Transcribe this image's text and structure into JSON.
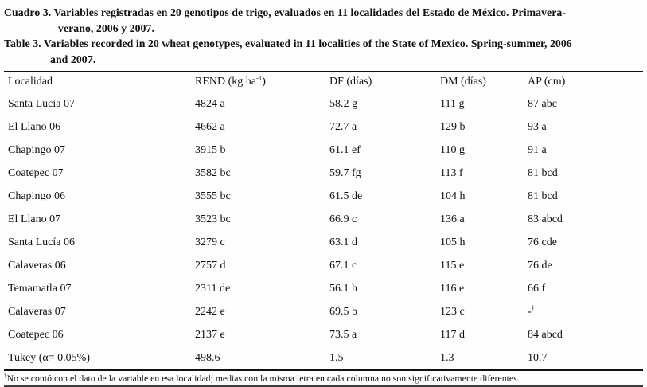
{
  "captions": {
    "es": {
      "line1": "Cuadro 3. Variables registradas en 20 genotipos de trigo, evaluados en 11 localidades del Estado de México. Primavera-",
      "line2": "verano, 2006 y 2007."
    },
    "en": {
      "line1": "Table 3. Variables recorded in 20 wheat genotypes, evaluated in 11 localities of the State of Mexico. Spring-summer, 2006",
      "line2": "and 2007."
    }
  },
  "table": {
    "headers": [
      {
        "pre": "Localidad",
        "sup": "",
        "post": ""
      },
      {
        "pre": "REND (kg ha",
        "sup": "-1",
        "post": ")"
      },
      {
        "pre": "DF (días)",
        "sup": "",
        "post": ""
      },
      {
        "pre": "DM (días)",
        "sup": "",
        "post": ""
      },
      {
        "pre": "AP (cm)",
        "sup": "",
        "post": ""
      }
    ],
    "rows": [
      {
        "cells": [
          "Santa Lucia 07",
          "4824 a",
          "58.2 g",
          "111 g",
          "87 abc"
        ]
      },
      {
        "cells": [
          "El Llano 06",
          "4662 a",
          "72.7 a",
          "129 b",
          "93 a"
        ]
      },
      {
        "cells": [
          "Chapingo 07",
          "3915 b",
          "61.1 ef",
          "110 g",
          "91 a"
        ]
      },
      {
        "cells": [
          "Coatepec 07",
          "3582 bc",
          "59.7 fg",
          "113 f",
          "81 bcd"
        ]
      },
      {
        "cells": [
          "Chapingo 06",
          "3555 bc",
          "61.5 de",
          "104 h",
          "81 bcd"
        ]
      },
      {
        "cells": [
          "El Llano 07",
          "3523 bc",
          "66.9 c",
          "136 a",
          "83 abcd"
        ]
      },
      {
        "cells": [
          "Santa Lucía 06",
          "3279 c",
          "63.1 d",
          "105 h",
          "76 cde"
        ]
      },
      {
        "cells": [
          "Calaveras 06",
          "2757 d",
          "67.1 c",
          "115 e",
          "76 de"
        ]
      },
      {
        "cells": [
          "Temamatla 07",
          "2311 de",
          "56.1 h",
          "116 e",
          "66 f"
        ]
      },
      {
        "cells": [
          "Calaveras 07",
          "2242 e",
          "69.5 b",
          "123 c",
          {
            "pre": "-",
            "sup": "†",
            "post": ""
          }
        ]
      },
      {
        "cells": [
          "Coatepec 06",
          "2137 e",
          "73.5 a",
          "117 d",
          "84 abcd"
        ]
      },
      {
        "cells": [
          "Tukey (α= 0.05%)",
          "498.6",
          "1.5",
          "1.3",
          "10.7"
        ]
      }
    ]
  },
  "footnote": {
    "marker": "†",
    "text": "No se contó con el dato de la variable en esa localidad; medias con la misma letra en cada columna no son significativamente diferentes."
  }
}
